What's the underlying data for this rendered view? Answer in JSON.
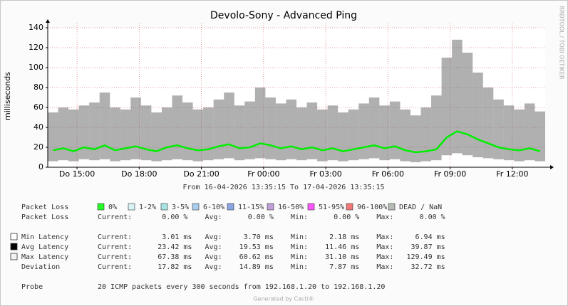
{
  "chart_data": {
    "type": "smokeping",
    "title": "Devolo-Sony - Advanced Ping",
    "subtitle": "From 16-04-2026 13:35:15 To 17-04-2026 13:35:15",
    "y_label": "milliseconds",
    "side_text": "RRDTOOL / TOBI OETIKER",
    "footer": "Generated by Cacti®",
    "xlim": [
      0,
      24
    ],
    "xticks": [
      {
        "value": 1.4125,
        "label": "Do 15:00"
      },
      {
        "value": 4.4125,
        "label": "Do 18:00"
      },
      {
        "value": 7.4125,
        "label": "Do 21:00"
      },
      {
        "value": 10.4125,
        "label": "Fr 00:00"
      },
      {
        "value": 13.4125,
        "label": "Fr 03:00"
      },
      {
        "value": 16.4125,
        "label": "Fr 06:00"
      },
      {
        "value": 19.4125,
        "label": "Fr 09:00"
      },
      {
        "value": 22.4125,
        "label": "Fr 12:00"
      }
    ],
    "ylim": [
      0,
      145
    ],
    "yticks": [
      0,
      20,
      40,
      60,
      80,
      100,
      120,
      140
    ],
    "grid": true,
    "grid_color": "#e08080",
    "x": [
      0.25,
      0.75,
      1.25,
      1.75,
      2.25,
      2.75,
      3.25,
      3.75,
      4.25,
      4.75,
      5.25,
      5.75,
      6.25,
      6.75,
      7.25,
      7.75,
      8.25,
      8.75,
      9.25,
      9.75,
      10.25,
      10.75,
      11.25,
      11.75,
      12.25,
      12.75,
      13.25,
      13.75,
      14.25,
      14.75,
      15.25,
      15.75,
      16.25,
      16.75,
      17.25,
      17.75,
      18.25,
      18.75,
      19.25,
      19.75,
      20.25,
      20.75,
      21.25,
      21.75,
      22.25,
      22.75,
      23.25,
      23.75
    ],
    "smoke": {
      "color": "#707070",
      "low": [
        6,
        7,
        6,
        8,
        7,
        8,
        6,
        7,
        8,
        7,
        6,
        7,
        8,
        7,
        6,
        7,
        8,
        9,
        7,
        8,
        9,
        8,
        7,
        8,
        7,
        8,
        6,
        7,
        6,
        7,
        8,
        9,
        7,
        8,
        6,
        5,
        6,
        7,
        12,
        14,
        12,
        10,
        9,
        8,
        7,
        6,
        7,
        6
      ],
      "high": [
        55,
        60,
        58,
        62,
        65,
        75,
        60,
        58,
        70,
        62,
        55,
        60,
        72,
        65,
        58,
        60,
        68,
        75,
        62,
        66,
        80,
        70,
        64,
        68,
        60,
        65,
        58,
        62,
        55,
        58,
        64,
        70,
        62,
        66,
        58,
        52,
        60,
        72,
        110,
        128,
        115,
        95,
        80,
        68,
        62,
        58,
        64,
        56
      ]
    },
    "median": {
      "color": "#00ee00",
      "values": [
        17,
        19,
        16,
        20,
        18,
        22,
        17,
        19,
        21,
        18,
        16,
        20,
        22,
        19,
        17,
        18,
        21,
        23,
        19,
        20,
        24,
        22,
        19,
        21,
        18,
        20,
        17,
        19,
        16,
        18,
        20,
        22,
        19,
        21,
        17,
        15,
        16,
        18,
        30,
        36,
        33,
        28,
        24,
        20,
        18,
        17,
        19,
        16
      ]
    },
    "loss_legend": {
      "label": "Packet Loss",
      "items": [
        {
          "name": "0%",
          "color": "#26ff26"
        },
        {
          "name": "1-2%",
          "color": "#d8f4f4"
        },
        {
          "name": "3-5%",
          "color": "#a8e4e4"
        },
        {
          "name": "6-10%",
          "color": "#a8cdef"
        },
        {
          "name": "11-15%",
          "color": "#8aa6e4"
        },
        {
          "name": "16-50%",
          "color": "#c0a0d8"
        },
        {
          "name": "51-95%",
          "color": "#ff55ff"
        },
        {
          "name": "96-100%",
          "color": "#f07878"
        },
        {
          "name": "DEAD / NaN",
          "color": "#b4bcb4"
        }
      ]
    },
    "stats": [
      {
        "label": "Packet Loss",
        "marker": null,
        "text": "Current:       0.00 %    Avg:      0.00 %    Min:      0.00 %    Max:      0.00 %"
      },
      {
        "label": "Min Latency",
        "marker": "#ffffff",
        "text": "Current:       3.01 ms   Avg:     3.70 ms    Min:     2.18 ms    Max:     6.94 ms"
      },
      {
        "label": "Avg Latency",
        "marker": "#000000",
        "text": "Current:      23.42 ms   Avg:    19.53 ms    Min:    11.46 ms    Max:    39.87 ms"
      },
      {
        "label": "Max Latency",
        "marker": "#f0f4f0",
        "text": "Current:      67.38 ms   Avg:    60.62 ms    Min:    31.10 ms    Max:   129.49 ms"
      },
      {
        "label": "Deviation",
        "marker": null,
        "text": "Current:      17.82 ms   Avg:    14.89 ms    Min:     7.87 ms    Max:    32.72 ms"
      }
    ],
    "probe": {
      "label": "Probe",
      "text": "20 ICMP packets every 300 seconds from 192.168.1.20 to 192.168.1.20"
    }
  }
}
